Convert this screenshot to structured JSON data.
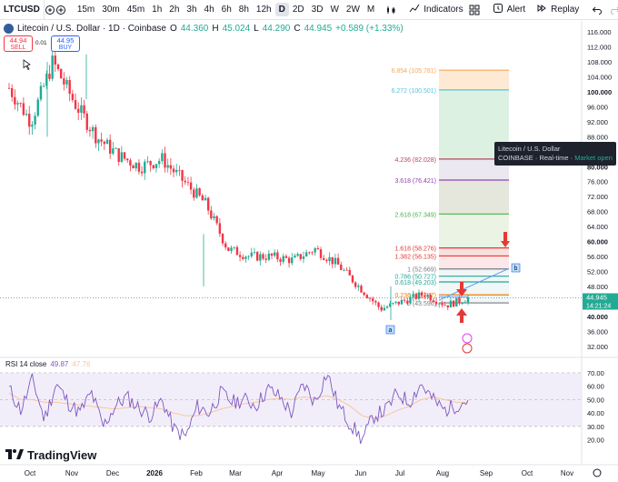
{
  "toolbar": {
    "symbol": "LTCUSD",
    "intervals": [
      "15m",
      "30m",
      "45m",
      "1h",
      "2h",
      "3h",
      "4h",
      "6h",
      "8h",
      "12h",
      "D",
      "2D",
      "3D",
      "W",
      "2W",
      "M"
    ],
    "active_interval": "D",
    "indicators_label": "Indicators",
    "alert_label": "Alert",
    "replay_label": "Replay",
    "icons": [
      "add-symbol-icon",
      "compare-icon",
      "chart-type-icon",
      "indicators-icon",
      "layout-icon",
      "alert-icon",
      "replay-icon",
      "undo-icon",
      "redo-icon",
      "fullscreen-icon"
    ]
  },
  "legend": {
    "title": "Litecoin / U.S. Dollar · 1D · Coinbase",
    "o_label": "O",
    "o_val": "44.360",
    "h_label": "H",
    "h_val": "45.024",
    "l_label": "L",
    "l_val": "44.290",
    "c_label": "C",
    "c_val": "44.945",
    "change": "+0.589 (+1.33%)"
  },
  "trade": {
    "sell_price": "44.94",
    "sell_label": "SELL",
    "buy_price": "44.95",
    "buy_label": "BUY",
    "spread": "0.01"
  },
  "tooltip": {
    "line1": "Litecoin / U.S. Dollar",
    "line2_a": "COINBASE",
    "line2_b": "· Real-time ·",
    "line2_c": "Market open"
  },
  "rsi": {
    "label": "RSI 14 close",
    "value": "49.87",
    "ma_value": "47.76"
  },
  "brand": "TradingView",
  "colors": {
    "up": "#22ab94",
    "down": "#f23645",
    "rsi": "#7e57c2",
    "rsi_ma": "#f7c5a0",
    "accent": "#2962ff"
  },
  "chart_data": [
    {
      "type": "candlestick",
      "title": "Litecoin / U.S. Dollar · 1D · Coinbase",
      "x_ticks": [
        "Oct",
        "Nov",
        "Dec",
        "2026",
        "Feb",
        "Mar",
        "Apr",
        "May",
        "Jun",
        "Jul",
        "Aug",
        "Sep",
        "Oct",
        "Nov"
      ],
      "y_ticks": [
        116,
        112,
        108,
        104,
        100,
        96,
        92,
        88,
        84,
        80,
        76,
        72,
        68,
        64,
        60,
        56,
        52,
        48,
        44,
        40,
        36,
        32
      ],
      "y_tick_labels": [
        "116.000",
        "112.000",
        "108.000",
        "104.000",
        "100.000",
        "96.000",
        "92.000",
        "88.000",
        "84.000",
        "80.000",
        "76.000",
        "72.000",
        "68.000",
        "64.000",
        "60.000",
        "56.000",
        "52.000",
        "48.000",
        "44.000",
        "40.000",
        "36.000",
        "32.000"
      ],
      "ylim": [
        30,
        117
      ],
      "last_price": "44.945",
      "countdown": "14:21:24",
      "close_path": [
        {
          "x": "Oct",
          "y": 101
        },
        {
          "x": "Oct",
          "y": 92
        },
        {
          "x": "Nov",
          "y": 108
        },
        {
          "x": "Nov",
          "y": 97
        },
        {
          "x": "Nov",
          "y": 88
        },
        {
          "x": "Dec",
          "y": 83
        },
        {
          "x": "Dec",
          "y": 80
        },
        {
          "x": "2026",
          "y": 82
        },
        {
          "x": "2026",
          "y": 76
        },
        {
          "x": "Feb",
          "y": 70
        },
        {
          "x": "Feb",
          "y": 58
        },
        {
          "x": "Mar",
          "y": 56
        },
        {
          "x": "Apr",
          "y": 56
        },
        {
          "x": "Apr",
          "y": 55
        },
        {
          "x": "May",
          "y": 58
        },
        {
          "x": "May",
          "y": 54
        },
        {
          "x": "Jun",
          "y": 48
        },
        {
          "x": "Jun",
          "y": 42
        },
        {
          "x": "Jul",
          "y": 44
        },
        {
          "x": "Jul",
          "y": 46
        },
        {
          "x": "Aug",
          "y": 43
        },
        {
          "x": "Aug",
          "y": 44.9
        }
      ],
      "fib_levels": [
        {
          "label": "6.854 (105.781)",
          "value": 105.781,
          "color": "#f5a85c"
        },
        {
          "label": "6.272 (100.501)",
          "value": 100.501,
          "color": "#59c2d6"
        },
        {
          "label": "4.236 (82.028)",
          "value": 82.028,
          "color": "#b24a5a"
        },
        {
          "label": "3.618 (76.421)",
          "value": 76.421,
          "color": "#8e44ad"
        },
        {
          "label": "2.618 (67.349)",
          "value": 67.349,
          "color": "#4caf50"
        },
        {
          "label": "1.618 (58.276)",
          "value": 58.276,
          "color": "#e53935"
        },
        {
          "label": "1.382 (56.135)",
          "value": 56.135,
          "color": "#e53935"
        },
        {
          "label": "1 (52.669)",
          "value": 52.669,
          "color": "#787b86"
        },
        {
          "label": "0.786 (50.727)",
          "value": 50.727,
          "color": "#26a69a"
        },
        {
          "label": "0.618 (49.203)",
          "value": 49.203,
          "color": "#26a69a"
        },
        {
          "label": "0.236 (45.737)",
          "value": 45.737,
          "color": "#f57c00"
        },
        {
          "label": "0 (43.596)",
          "value": 43.596,
          "color": "#787b86"
        }
      ],
      "markers": [
        "a",
        "b"
      ]
    },
    {
      "type": "line",
      "title": "RSI 14 close",
      "y_ticks": [
        70,
        60,
        50,
        40,
        30,
        20
      ],
      "y_tick_labels": [
        "70.00",
        "60.00",
        "50.00",
        "40.00",
        "30.00",
        "20.00"
      ],
      "ylim": [
        15,
        72
      ],
      "series": [
        {
          "name": "RSI",
          "values": [
            58,
            42,
            65,
            35,
            62,
            48,
            40,
            55,
            30,
            45,
            52,
            44,
            38,
            50,
            28,
            22,
            45,
            40,
            55,
            48,
            50,
            46,
            58,
            52,
            40,
            62,
            48,
            70,
            45,
            32,
            20,
            38,
            42,
            55,
            48,
            62,
            50,
            42,
            46,
            49.87
          ]
        },
        {
          "name": "MA",
          "values": [
            55,
            50,
            50,
            48,
            48,
            47,
            46,
            45,
            44,
            43,
            44,
            45,
            44,
            43,
            40,
            38,
            38,
            40,
            43,
            45,
            47,
            48,
            50,
            51,
            50,
            52,
            51,
            53,
            50,
            45,
            38,
            36,
            38,
            42,
            45,
            50,
            52,
            50,
            48,
            47.76
          ]
        }
      ]
    }
  ]
}
